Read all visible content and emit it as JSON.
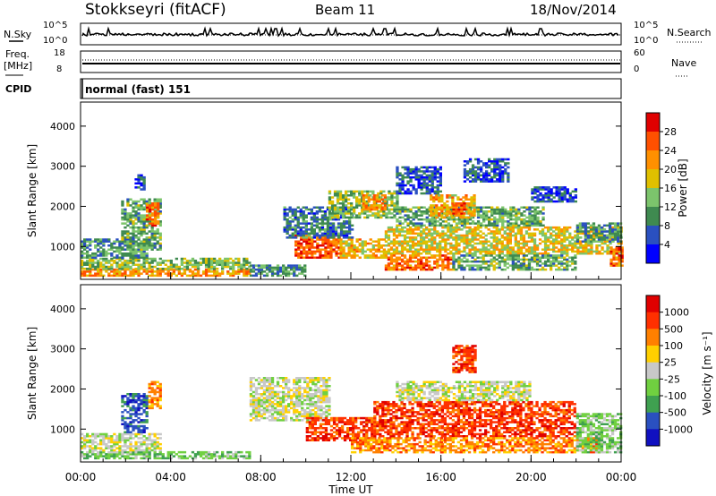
{
  "header": {
    "station": "Stokkseyri (fitACF)",
    "beam": "Beam 11",
    "date": "18/Nov/2014"
  },
  "status_panels": {
    "nsky_label": "N.Sky",
    "nsky_ticks": [
      "10^5",
      "10^0"
    ],
    "nsearch_label": "N.Search",
    "freq_label": "Freq.",
    "freq_unit": "[MHz]",
    "freq_ticks": [
      "18",
      "8"
    ],
    "nave_ticks": [
      "60",
      "0"
    ],
    "nave_label": "Nave",
    "cpid_label": "CPID",
    "cpid_value": "normal (fast) 151"
  },
  "x_axis": {
    "label": "Time UT",
    "ticks": [
      "00:00",
      "04:00",
      "08:00",
      "12:00",
      "16:00",
      "20:00",
      "00:00"
    ],
    "range_hours": [
      0,
      24
    ]
  },
  "chart_data": [
    {
      "type": "heatmap",
      "panel": "power",
      "ylabel": "Slant Range [km]",
      "yticks": [
        "1000",
        "2000",
        "3000",
        "4000"
      ],
      "ylim": [
        180,
        4600
      ],
      "xlim": [
        0,
        24
      ],
      "colorbar": {
        "label": "Power [dB]",
        "ticks": [
          "4",
          "8",
          "12",
          "16",
          "20",
          "24",
          "28"
        ],
        "colors": [
          "#0000ff",
          "#2a50c0",
          "#3f8a50",
          "#7cc46c",
          "#e0c000",
          "#ff9000",
          "#ff5000",
          "#e00000"
        ],
        "range": [
          0,
          32
        ]
      },
      "regions": [
        {
          "t0": 0.0,
          "t1": 7.5,
          "r0": 250,
          "r1": 420,
          "v": 22
        },
        {
          "t0": 0.0,
          "t1": 7.5,
          "r0": 420,
          "r1": 700,
          "v": 14
        },
        {
          "t0": 0.0,
          "t1": 3.0,
          "r0": 700,
          "r1": 1200,
          "v": 10
        },
        {
          "t0": 1.8,
          "t1": 3.6,
          "r0": 900,
          "r1": 2200,
          "v": 12
        },
        {
          "t0": 2.9,
          "t1": 3.5,
          "r0": 1500,
          "r1": 2100,
          "v": 24
        },
        {
          "t0": 2.4,
          "t1": 2.8,
          "r0": 2400,
          "r1": 2800,
          "v": 6
        },
        {
          "t0": 7.5,
          "t1": 10.0,
          "r0": 250,
          "r1": 550,
          "v": 10
        },
        {
          "t0": 9.5,
          "t1": 11.5,
          "r0": 700,
          "r1": 1300,
          "v": 26
        },
        {
          "t0": 11.5,
          "t1": 13.5,
          "r0": 700,
          "r1": 1200,
          "v": 20
        },
        {
          "t0": 9.0,
          "t1": 12.0,
          "r0": 1200,
          "r1": 2000,
          "v": 8
        },
        {
          "t0": 11.0,
          "t1": 14.0,
          "r0": 1700,
          "r1": 2400,
          "v": 14
        },
        {
          "t0": 12.5,
          "t1": 13.5,
          "r0": 1900,
          "r1": 2300,
          "v": 22
        },
        {
          "t0": 13.5,
          "t1": 24.0,
          "r0": 800,
          "r1": 1500,
          "v": 18
        },
        {
          "t0": 14.0,
          "t1": 20.5,
          "r0": 1500,
          "r1": 2000,
          "v": 12
        },
        {
          "t0": 15.5,
          "t1": 17.5,
          "r0": 1700,
          "r1": 2300,
          "v": 20
        },
        {
          "t0": 16.5,
          "t1": 17.0,
          "r0": 1800,
          "r1": 2100,
          "v": 26
        },
        {
          "t0": 13.5,
          "t1": 16.5,
          "r0": 400,
          "r1": 800,
          "v": 24
        },
        {
          "t0": 16.5,
          "t1": 22.0,
          "r0": 400,
          "r1": 800,
          "v": 12
        },
        {
          "t0": 14.0,
          "t1": 16.0,
          "r0": 2300,
          "r1": 3000,
          "v": 6
        },
        {
          "t0": 17.0,
          "t1": 19.0,
          "r0": 2600,
          "r1": 3200,
          "v": 6
        },
        {
          "t0": 20.0,
          "t1": 22.0,
          "r0": 2100,
          "r1": 2500,
          "v": 6
        },
        {
          "t0": 22.0,
          "t1": 24.0,
          "r0": 1100,
          "r1": 1600,
          "v": 10
        },
        {
          "t0": 23.5,
          "t1": 24.0,
          "r0": 500,
          "r1": 1000,
          "v": 24
        }
      ]
    },
    {
      "type": "heatmap",
      "panel": "velocity",
      "ylabel": "Slant Range [km]",
      "yticks": [
        "1000",
        "2000",
        "3000",
        "4000"
      ],
      "ylim": [
        180,
        4600
      ],
      "xlim": [
        0,
        24
      ],
      "colorbar": {
        "label": "Velocity [m s⁻¹]",
        "ticks": [
          "1000",
          "500",
          "100",
          "25",
          "-25",
          "-100",
          "-500",
          "-1000"
        ],
        "colors": [
          "#1010c0",
          "#2a50c0",
          "#3fa050",
          "#70d040",
          "#c8c8c8",
          "#ffd000",
          "#ff8000",
          "#ff3000",
          "#e00000"
        ]
      },
      "regions": [
        {
          "t0": 0.0,
          "t1": 7.5,
          "r0": 250,
          "r1": 450,
          "v": 3
        },
        {
          "t0": 0.0,
          "t1": 3.5,
          "r0": 450,
          "r1": 900,
          "v": 4
        },
        {
          "t0": 1.8,
          "t1": 3.0,
          "r0": 900,
          "r1": 1900,
          "v": 1
        },
        {
          "t0": 3.0,
          "t1": 3.6,
          "r0": 1500,
          "r1": 2200,
          "v": 6
        },
        {
          "t0": 7.5,
          "t1": 11.0,
          "r0": 1200,
          "r1": 2300,
          "v": 4
        },
        {
          "t0": 10.0,
          "t1": 13.0,
          "r0": 700,
          "r1": 1300,
          "v": 7
        },
        {
          "t0": 12.0,
          "t1": 16.0,
          "r0": 400,
          "r1": 800,
          "v": 6
        },
        {
          "t0": 13.0,
          "t1": 22.0,
          "r0": 800,
          "r1": 1700,
          "v": 7
        },
        {
          "t0": 14.0,
          "t1": 20.0,
          "r0": 1700,
          "r1": 2200,
          "v": 4
        },
        {
          "t0": 16.0,
          "t1": 23.0,
          "r0": 400,
          "r1": 800,
          "v": 6
        },
        {
          "t0": 22.0,
          "t1": 24.0,
          "r0": 400,
          "r1": 1400,
          "v": 3
        },
        {
          "t0": 16.5,
          "t1": 17.5,
          "r0": 2400,
          "r1": 3100,
          "v": 7
        }
      ]
    }
  ]
}
